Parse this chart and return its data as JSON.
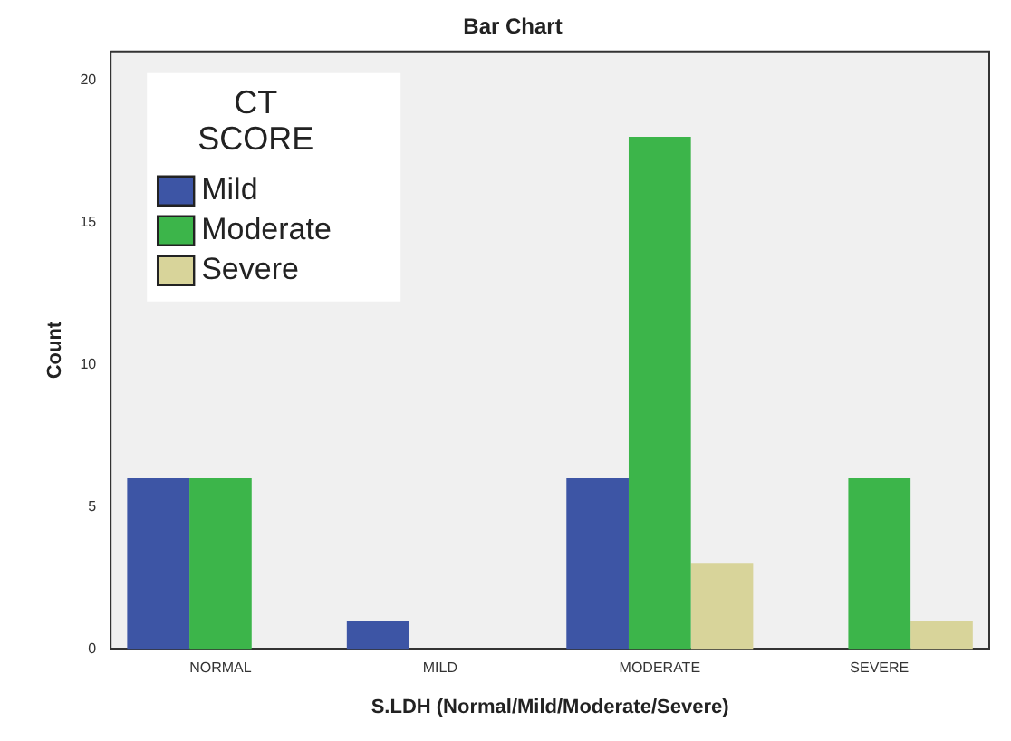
{
  "chart_data": {
    "type": "bar",
    "title": "Bar Chart",
    "xlabel": "S.LDH (Normal/Mild/Moderate/Severe)",
    "ylabel": "Count",
    "legend_title": "CT SCORE",
    "categories": [
      "NORMAL",
      "MILD",
      "MODERATE",
      "SEVERE"
    ],
    "series": [
      {
        "name": "Mild",
        "color": "#3d55a5",
        "values": [
          6,
          1,
          6,
          0
        ]
      },
      {
        "name": "Moderate",
        "color": "#3cb54a",
        "values": [
          6,
          0,
          18,
          6
        ]
      },
      {
        "name": "Severe",
        "color": "#d8d49a",
        "values": [
          0,
          0,
          3,
          1
        ]
      }
    ],
    "ylim": [
      0,
      21
    ],
    "yticks": [
      0,
      5,
      10,
      15,
      20
    ],
    "grid": false,
    "legend": "top left"
  }
}
